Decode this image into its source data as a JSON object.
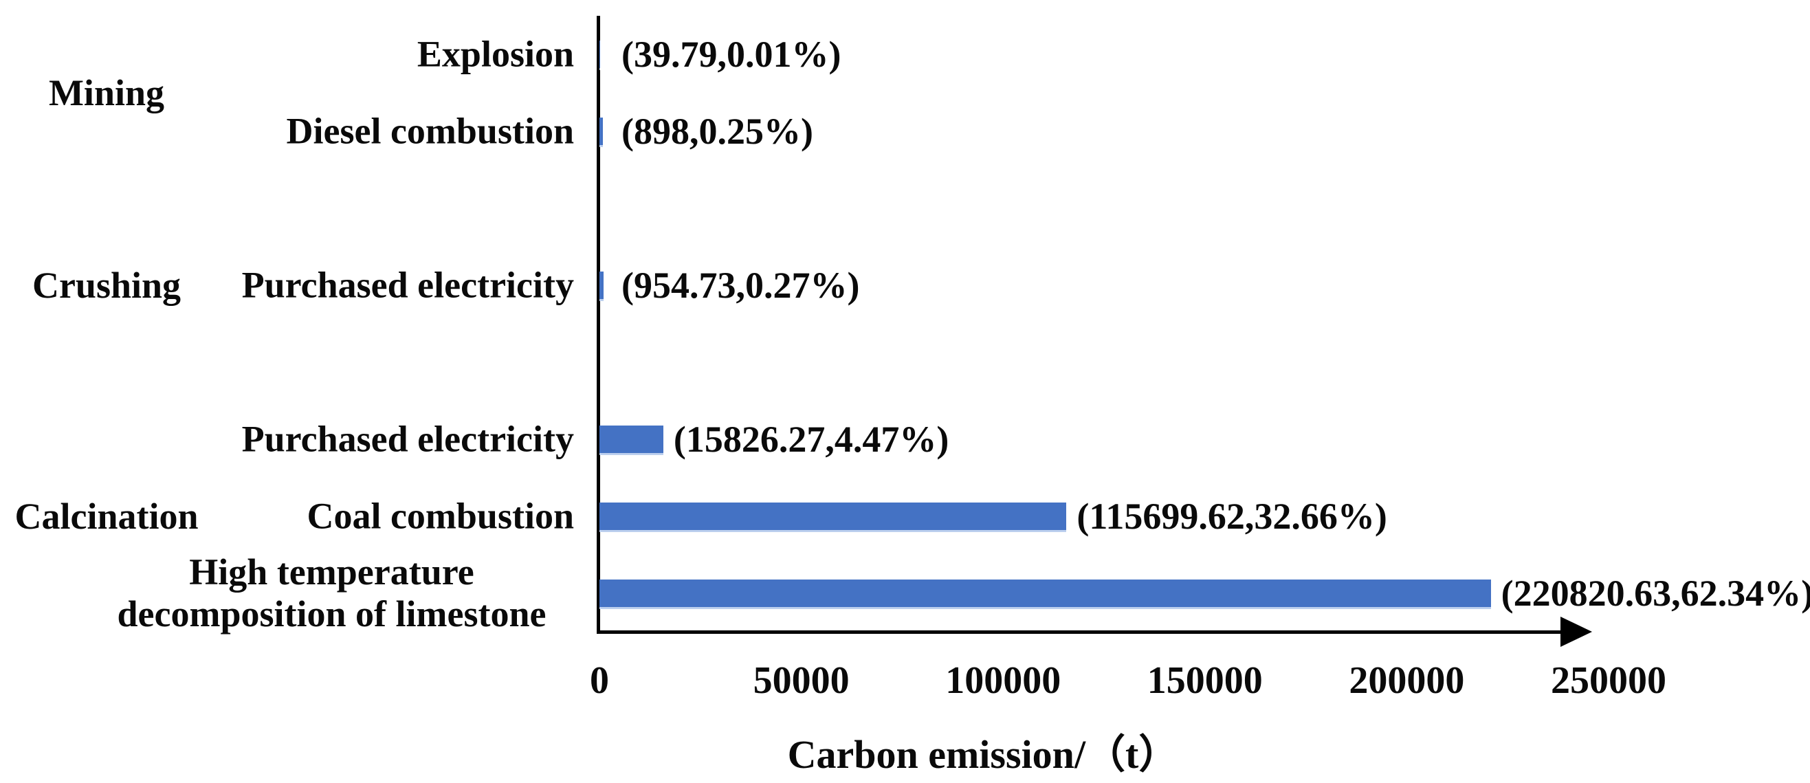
{
  "chart_data": {
    "type": "bar",
    "orientation": "horizontal",
    "xlabel": "Carbon emission/（t）",
    "xlim": [
      0,
      250000
    ],
    "x_ticks": [
      "0",
      "50000",
      "100000",
      "150000",
      "200000",
      "250000"
    ],
    "x_tick_values": [
      0,
      50000,
      100000,
      150000,
      200000,
      250000
    ],
    "bar_color": "#4472C4",
    "axis_color": "#000000",
    "text_color": "#0a0a0a",
    "grid": false,
    "legend": false,
    "groups": [
      {
        "label": "Mining"
      },
      {
        "label": "Crushing"
      },
      {
        "label": "Calcination"
      }
    ],
    "rows": [
      {
        "group": "Mining",
        "label": "Explosion",
        "value": 39.79,
        "percent": "0.01%",
        "annotation": "(39.79,0.01%)",
        "slot": 0
      },
      {
        "group": "Mining",
        "label": "Diesel combustion",
        "value": 898,
        "percent": "0.25%",
        "annotation": "(898,0.25%)",
        "slot": 1
      },
      {
        "group": "Crushing",
        "label": "Purchased electricity",
        "value": 954.73,
        "percent": "0.27%",
        "annotation": "(954.73,0.27%)",
        "slot": 3
      },
      {
        "group": "Calcination",
        "label": "Purchased electricity",
        "value": 15826.27,
        "percent": "4.47%",
        "annotation": "(15826.27,4.47%)",
        "slot": 5
      },
      {
        "group": "Calcination",
        "label": "Coal combustion",
        "value": 115699.62,
        "percent": "32.66%",
        "annotation": "(115699.62,32.66%)",
        "slot": 6
      },
      {
        "group": "Calcination",
        "label": "High temperature\ndecomposition of limestone",
        "label_lines": [
          "High temperature",
          "decomposition of limestone"
        ],
        "value": 220820.63,
        "percent": "62.34%",
        "annotation": "(220820.63,62.34%)",
        "slot": 7
      }
    ]
  }
}
